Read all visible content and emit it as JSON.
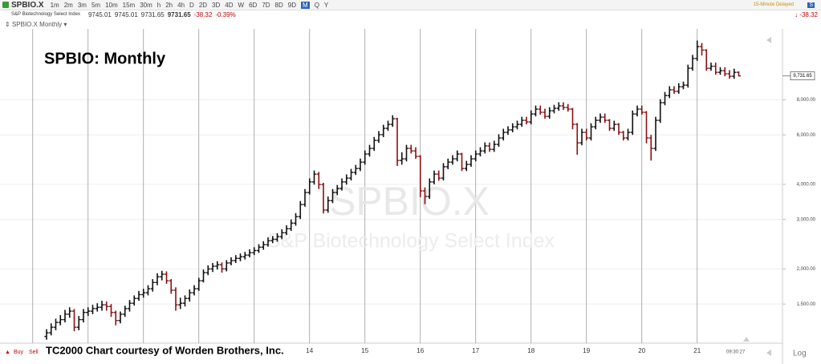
{
  "toolbar": {
    "symbol": "SPBIO.X",
    "intervals": [
      "1m",
      "2m",
      "3m",
      "5m",
      "10m",
      "15m",
      "30m",
      "h",
      "2h",
      "4h",
      "D",
      "2D",
      "3D",
      "4D",
      "W",
      "6D",
      "7D",
      "8D",
      "9D",
      "M",
      "Q",
      "Y"
    ],
    "delayed": "15-Minute Delayed",
    "menu": "S"
  },
  "header": {
    "name": "S&P Biotechnology Select Index",
    "open": "9745.01",
    "high": "9745.01",
    "low": "9731.65",
    "last": "9731.65",
    "change": "-38.32",
    "change_pct": "-0.39%"
  },
  "chart_label": "SPBIO.X Monthly",
  "trade": {
    "buy": "Buy",
    "sell": "Sell"
  },
  "chart_data": {
    "type": "ohlc",
    "title": "SPBIO:  Monthly",
    "watermark": "SPBIO.X",
    "watermark_subtitle": "S&P Biotechnology Select Index",
    "categories": [
      null,
      null,
      null,
      null,
      null,
      null,
      null,
      null,
      null,
      null,
      null,
      null,
      null,
      null,
      null,
      null,
      null,
      null,
      null,
      null,
      null,
      null,
      null,
      null,
      null,
      null,
      null,
      null,
      null,
      null,
      null,
      null,
      null,
      null,
      null,
      null,
      null,
      null,
      null,
      null,
      null,
      null,
      null,
      null,
      null,
      null,
      null,
      null,
      null,
      null,
      null,
      null,
      null,
      null,
      null,
      null,
      null,
      "14",
      null,
      null,
      null,
      null,
      null,
      null,
      null,
      null,
      null,
      null,
      null,
      "15",
      null,
      null,
      null,
      null,
      null,
      null,
      null,
      null,
      null,
      null,
      null,
      "16",
      null,
      null,
      null,
      null,
      null,
      null,
      null,
      null,
      null,
      null,
      null,
      "17",
      null,
      null,
      null,
      null,
      null,
      null,
      null,
      null,
      null,
      null,
      null,
      "18",
      null,
      null,
      null,
      null,
      null,
      null,
      null,
      null,
      null,
      null,
      null,
      "19",
      null,
      null,
      null,
      null,
      null,
      null,
      null,
      null,
      null,
      null,
      null,
      "20",
      null,
      null,
      null,
      null,
      null,
      null,
      null,
      null,
      null,
      null,
      null,
      "21",
      null,
      null,
      null,
      null,
      null,
      null,
      null,
      null,
      null
    ],
    "open": [
      1150,
      1185,
      1240,
      1290,
      1320,
      1380,
      1415,
      1240,
      1320,
      1400,
      1415,
      1445,
      1460,
      1490,
      1470,
      1400,
      1310,
      1380,
      1445,
      1510,
      1570,
      1620,
      1645,
      1700,
      1790,
      1875,
      1915,
      1815,
      1680,
      1490,
      1510,
      1570,
      1645,
      1700,
      1815,
      1940,
      2000,
      2045,
      2070,
      2000,
      2100,
      2140,
      2180,
      2210,
      2240,
      2285,
      2325,
      2390,
      2440,
      2520,
      2550,
      2605,
      2690,
      2780,
      2910,
      3070,
      3390,
      3740,
      4080,
      4350,
      3995,
      3240,
      3500,
      3740,
      3865,
      4080,
      4210,
      4410,
      4555,
      4800,
      5130,
      5370,
      5735,
      6010,
      6330,
      6540,
      6850,
      4865,
      4930,
      5370,
      5260,
      5030,
      3790,
      3620,
      4080,
      4350,
      4210,
      4620,
      4800,
      4930,
      5130,
      4555,
      4710,
      4930,
      5130,
      5260,
      5480,
      5330,
      5550,
      5850,
      6125,
      6250,
      6410,
      6540,
      6760,
      6670,
      7120,
      7410,
      7220,
      6985,
      7310,
      7460,
      7610,
      7510,
      7410,
      6540,
      5620,
      6125,
      5850,
      6410,
      6760,
      6940,
      6760,
      6330,
      6540,
      6125,
      5850,
      6125,
      7120,
      7410,
      7220,
      5850,
      5370,
      6760,
      7810,
      8280,
      8680,
      8570,
      8900,
      9020,
      10360,
      11220,
      12370,
      12020,
      10360,
      10530,
      10020,
      10150,
      9900,
      9700,
      10020
    ],
    "high": [
      1220,
      1280,
      1330,
      1370,
      1430,
      1460,
      1440,
      1360,
      1440,
      1460,
      1490,
      1510,
      1540,
      1530,
      1500,
      1420,
      1410,
      1480,
      1550,
      1610,
      1670,
      1700,
      1750,
      1840,
      1930,
      1970,
      1960,
      1840,
      1720,
      1580,
      1610,
      1690,
      1750,
      1860,
      1990,
      2060,
      2100,
      2130,
      2110,
      2150,
      2200,
      2240,
      2270,
      2300,
      2350,
      2390,
      2450,
      2510,
      2590,
      2620,
      2680,
      2770,
      2860,
      3000,
      3160,
      3490,
      3850,
      4200,
      4480,
      4430,
      4050,
      3620,
      3850,
      3980,
      4200,
      4340,
      4540,
      4690,
      4940,
      5280,
      5530,
      5900,
      6190,
      6520,
      6740,
      7050,
      6900,
      5200,
      5530,
      5530,
      5420,
      5080,
      3900,
      4200,
      4480,
      4480,
      4760,
      4940,
      5080,
      5280,
      5180,
      4850,
      5080,
      5280,
      5420,
      5640,
      5640,
      5720,
      6030,
      6310,
      6440,
      6600,
      6740,
      6960,
      6960,
      7330,
      7630,
      7630,
      7440,
      7530,
      7680,
      7840,
      7840,
      7730,
      7480,
      6610,
      6310,
      6310,
      6600,
      6960,
      7150,
      7150,
      6830,
      6740,
      6610,
      6200,
      6310,
      7330,
      7630,
      7630,
      7290,
      6000,
      6960,
      8040,
      8530,
      8940,
      8940,
      9170,
      9290,
      10670,
      11560,
      13000,
      12740,
      12100,
      10850,
      10850,
      10450,
      10450,
      10200,
      10320,
      10100
    ],
    "low": [
      1120,
      1160,
      1210,
      1260,
      1290,
      1340,
      1200,
      1210,
      1290,
      1360,
      1380,
      1410,
      1420,
      1420,
      1350,
      1260,
      1280,
      1350,
      1410,
      1480,
      1540,
      1580,
      1610,
      1660,
      1750,
      1820,
      1770,
      1630,
      1420,
      1440,
      1470,
      1530,
      1610,
      1670,
      1790,
      1900,
      1950,
      1990,
      1940,
      1960,
      2060,
      2100,
      2130,
      2160,
      2200,
      2240,
      2280,
      2340,
      2400,
      2470,
      2500,
      2550,
      2640,
      2730,
      2850,
      3010,
      3330,
      3680,
      3990,
      3850,
      3150,
      3170,
      3430,
      3660,
      3800,
      3990,
      4130,
      4320,
      4460,
      4700,
      5020,
      5260,
      5620,
      5890,
      6200,
      6410,
      4650,
      4700,
      4830,
      5150,
      4930,
      3600,
      3400,
      3550,
      4000,
      4120,
      4130,
      4530,
      4700,
      4830,
      4460,
      4460,
      4620,
      4830,
      5030,
      5150,
      5220,
      5220,
      5440,
      5730,
      6000,
      6130,
      6280,
      6410,
      6540,
      6540,
      6980,
      7080,
      6850,
      6850,
      7160,
      7310,
      7360,
      7260,
      6280,
      5100,
      5510,
      5730,
      5730,
      6280,
      6620,
      6620,
      6200,
      6200,
      6000,
      5730,
      5730,
      6000,
      6980,
      7080,
      5600,
      4860,
      5260,
      6620,
      7650,
      8110,
      8400,
      8400,
      8720,
      8840,
      10150,
      11000,
      11500,
      10150,
      10150,
      9820,
      9820,
      9700,
      9500,
      9500,
      9690
    ],
    "close": [
      1185,
      1240,
      1290,
      1320,
      1380,
      1415,
      1240,
      1320,
      1400,
      1415,
      1445,
      1460,
      1490,
      1470,
      1400,
      1310,
      1380,
      1445,
      1510,
      1570,
      1620,
      1645,
      1700,
      1790,
      1875,
      1915,
      1815,
      1680,
      1490,
      1510,
      1570,
      1645,
      1700,
      1815,
      1940,
      2000,
      2045,
      2070,
      2000,
      2100,
      2140,
      2180,
      2210,
      2240,
      2285,
      2325,
      2390,
      2440,
      2520,
      2550,
      2605,
      2690,
      2780,
      2910,
      3070,
      3390,
      3740,
      4080,
      4350,
      3995,
      3240,
      3500,
      3740,
      3865,
      4080,
      4210,
      4410,
      4555,
      4800,
      5130,
      5370,
      5735,
      6010,
      6330,
      6540,
      6850,
      4865,
      4930,
      5370,
      5260,
      5030,
      3790,
      3620,
      4080,
      4350,
      4210,
      4620,
      4800,
      4930,
      5130,
      4555,
      4710,
      4930,
      5130,
      5260,
      5480,
      5330,
      5550,
      5850,
      6125,
      6250,
      6410,
      6540,
      6760,
      6670,
      7120,
      7410,
      7220,
      6985,
      7310,
      7460,
      7610,
      7510,
      7410,
      6540,
      5620,
      6125,
      5850,
      6410,
      6760,
      6940,
      6760,
      6330,
      6540,
      6125,
      5850,
      6125,
      7120,
      7410,
      7220,
      5850,
      5370,
      6760,
      7810,
      8280,
      8680,
      8570,
      8900,
      9020,
      10360,
      11220,
      12370,
      12020,
      10360,
      10530,
      10020,
      10150,
      9900,
      9700,
      10020,
      9731.65
    ],
    "up_color": "#111111",
    "down_color": "#8b1010",
    "log_scale": true,
    "grid": true,
    "ylim": [
      1110,
      14400
    ],
    "yticks": [
      {
        "value": 1500,
        "label": "1,500.00"
      },
      {
        "value": 2000,
        "label": "2,000.00"
      },
      {
        "value": 3000,
        "label": "3,000.00"
      },
      {
        "value": 4000,
        "label": "4,000.00"
      },
      {
        "value": 6000,
        "label": "6,000.00"
      },
      {
        "value": 8000,
        "label": "8,000.00"
      }
    ],
    "last_price": {
      "value": 9731.65,
      "label": "9,731.65"
    },
    "scale_label": "Log",
    "time": "09:30:27",
    "footer": "TC2000 Chart courtesy of Worden Brothers, Inc."
  }
}
